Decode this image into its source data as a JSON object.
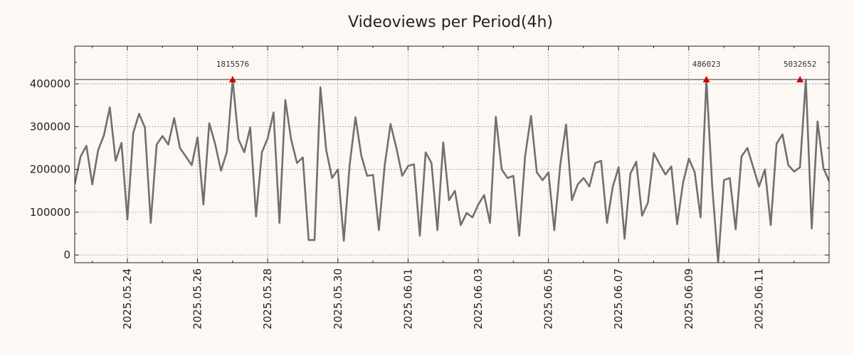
{
  "chart_data": {
    "type": "line",
    "title": "Videoviews per Period(4h)",
    "xlabel": "",
    "ylabel": "",
    "ylim": [
      -18000,
      488000
    ],
    "x_range_days": [
      0,
      21.5
    ],
    "grid": true,
    "colors": {
      "line": "#707070",
      "marker": "#cc0000",
      "threshold": "#333333",
      "grid": "#999999",
      "background": "#fdf8f4"
    },
    "yticks": [
      0,
      100000,
      200000,
      300000,
      400000
    ],
    "xticks": [
      {
        "day": 1.5,
        "label": "2025.05.24"
      },
      {
        "day": 3.5,
        "label": "2025.05.26"
      },
      {
        "day": 5.5,
        "label": "2025.05.28"
      },
      {
        "day": 7.5,
        "label": "2025.05.30"
      },
      {
        "day": 9.5,
        "label": "2025.06.01"
      },
      {
        "day": 11.5,
        "label": "2025.06.03"
      },
      {
        "day": 13.5,
        "label": "2025.06.05"
      },
      {
        "day": 15.5,
        "label": "2025.06.07"
      },
      {
        "day": 17.5,
        "label": "2025.06.09"
      },
      {
        "day": 19.5,
        "label": "2025.06.11"
      }
    ],
    "period_days": 0.1667,
    "threshold": 410000,
    "values": [
      165000,
      230000,
      255000,
      165000,
      245000,
      280000,
      345000,
      220000,
      262000,
      83000,
      285000,
      330000,
      298000,
      75000,
      258000,
      278000,
      258000,
      320000,
      250000,
      230000,
      210000,
      275000,
      118000,
      308000,
      260000,
      197000,
      240000,
      410000,
      270000,
      240000,
      298000,
      90000,
      240000,
      273000,
      333000,
      75000,
      362000,
      270000,
      215000,
      228000,
      35000,
      35000,
      392000,
      245000,
      180000,
      200000,
      33000,
      210000,
      322000,
      232000,
      185000,
      187000,
      58000,
      210000,
      306000,
      250000,
      185000,
      208000,
      212000,
      45000,
      240000,
      215000,
      58000,
      263000,
      128000,
      150000,
      70000,
      98000,
      88000,
      118000,
      140000,
      75000,
      323000,
      200000,
      180000,
      185000,
      45000,
      230000,
      325000,
      193000,
      175000,
      193000,
      58000,
      210000,
      305000,
      128000,
      165000,
      180000,
      160000,
      215000,
      220000,
      75000,
      160000,
      205000,
      38000,
      190000,
      218000,
      92000,
      122000,
      238000,
      212000,
      188000,
      207000,
      72000,
      168000,
      225000,
      193000,
      88000,
      410000,
      160000,
      -18000,
      175000,
      180000,
      60000,
      230000,
      250000,
      205000,
      160000,
      200000,
      70000,
      260000,
      282000,
      210000,
      195000,
      205000,
      410000,
      62000,
      312000,
      203000,
      172000,
      180000
    ],
    "annotations": [
      {
        "index": 27,
        "label": "1815576"
      },
      {
        "index": 108,
        "label": "486023"
      },
      {
        "index": 124,
        "label": "5032652"
      }
    ]
  }
}
